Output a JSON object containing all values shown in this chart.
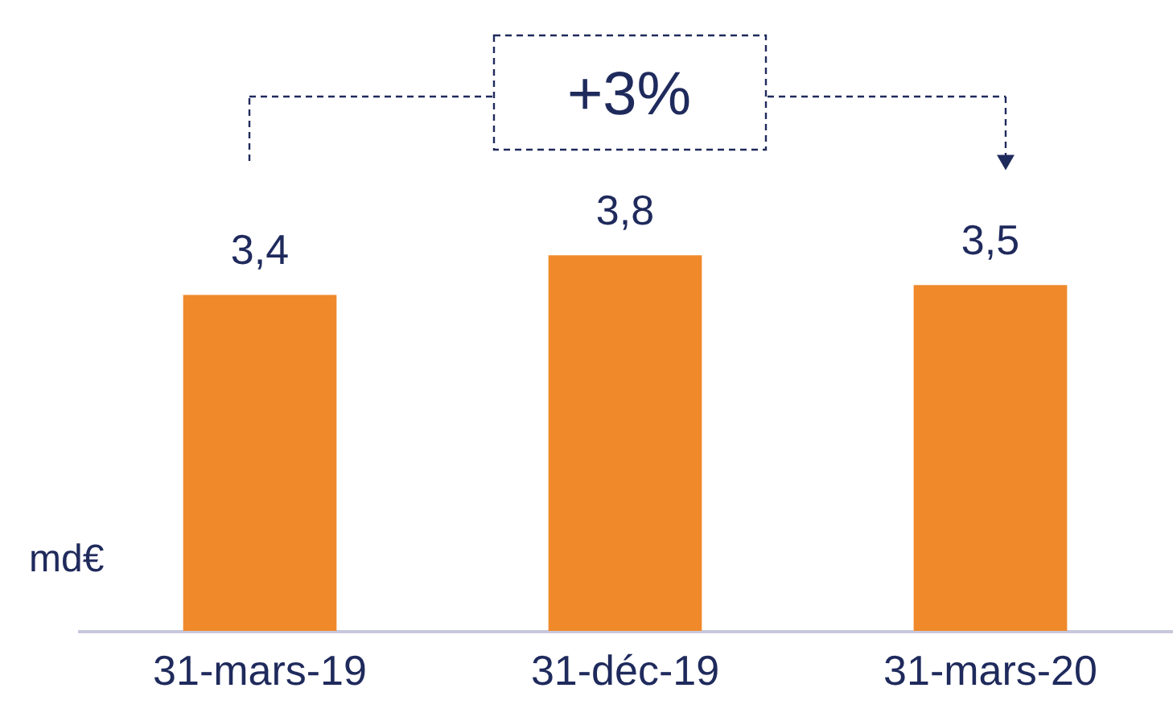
{
  "chart_data": {
    "type": "bar",
    "categories": [
      "31-mars-19",
      "31-déc-19",
      "31-mars-20"
    ],
    "values": [
      3.4,
      3.8,
      3.5
    ],
    "value_labels": [
      "3,4",
      "3,8",
      "3,5"
    ],
    "color": "#f0892a",
    "ylabel": "md€",
    "annotations": [
      "+3%"
    ]
  }
}
